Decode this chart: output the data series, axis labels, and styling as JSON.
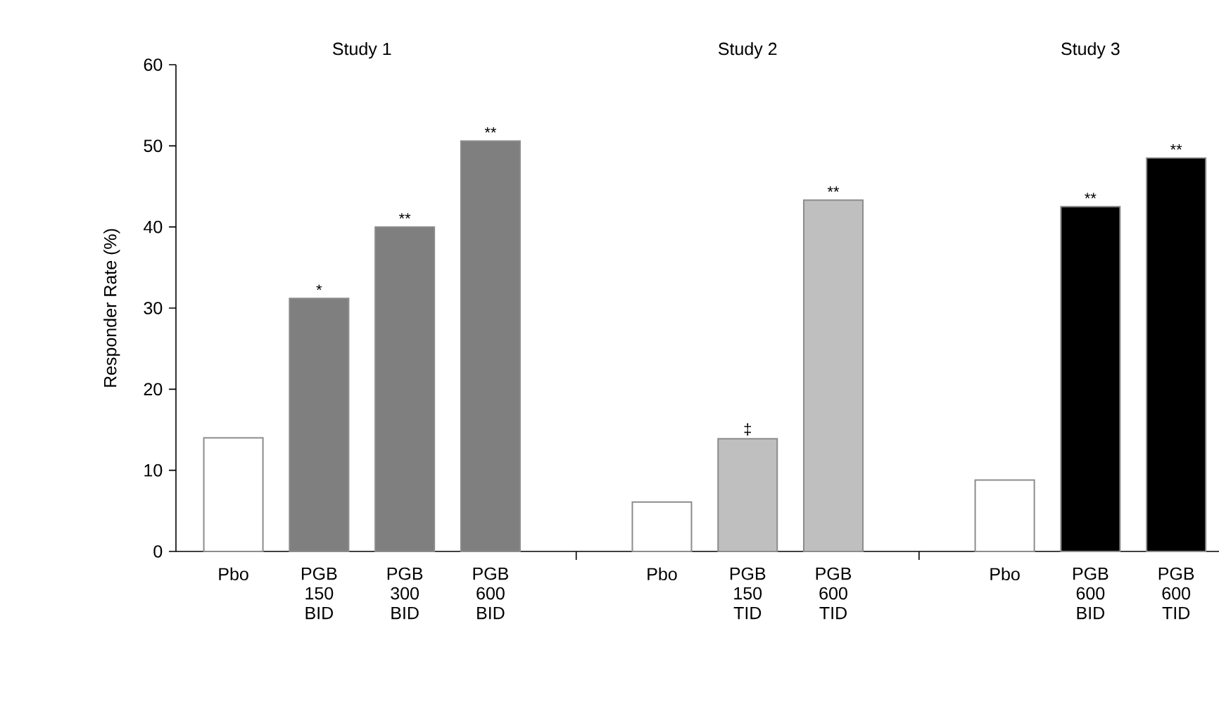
{
  "chart_data": {
    "type": "bar",
    "ylabel": "Responder Rate (%)",
    "categories": [
      "Pbo",
      "PGB 150 BID",
      "PGB 300 BID",
      "PGB 600 BID",
      null,
      "Pbo",
      "PGB 150 TID",
      "PGB 600 TID",
      null,
      "Pbo",
      "PGB 600 BID",
      "PGB 600 TID"
    ],
    "values": [
      14,
      31.2,
      40,
      50.6,
      null,
      6.1,
      13.9,
      43.3,
      null,
      8.8,
      42.5,
      48.5
    ],
    "colors": [
      "#ffffff",
      "#7f7f7f",
      "#7f7f7f",
      "#7f7f7f",
      null,
      "#ffffff",
      "#bfbfbf",
      "#bfbfbf",
      null,
      "#ffffff",
      "#000000",
      "#000000"
    ],
    "value_labels": [
      null,
      "*",
      "**",
      "**",
      null,
      null,
      "‡",
      "**",
      null,
      null,
      "**",
      "**"
    ],
    "annotations": [
      "Study 1",
      "Study 2",
      "Study 3"
    ],
    "ylim": [
      0,
      60
    ],
    "yticks": [
      0,
      10,
      20,
      30,
      40,
      50,
      60
    ],
    "grid": false
  }
}
